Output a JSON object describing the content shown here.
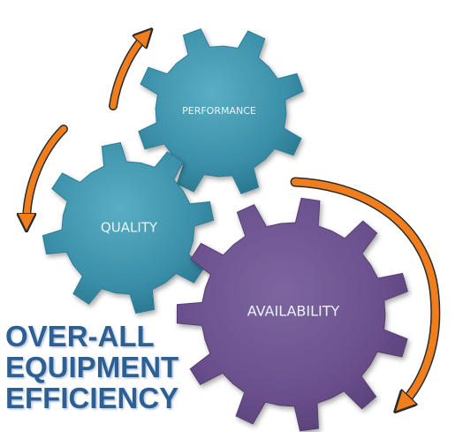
{
  "title": {
    "lines": [
      "OVER-ALL",
      "EQUIPMENT",
      "EFFICIENCY"
    ]
  },
  "gears": {
    "performance": {
      "label": "PERFORMANCE"
    },
    "quality": {
      "label": "QUALITY"
    },
    "availability": {
      "label": "AVAILABILITY"
    }
  },
  "colors": {
    "teal_gear": "#3a8fa8",
    "purple_gear": "#6a4f8c",
    "arrow_orange": "#f07e1c",
    "title_blue": "#2e5f92"
  }
}
